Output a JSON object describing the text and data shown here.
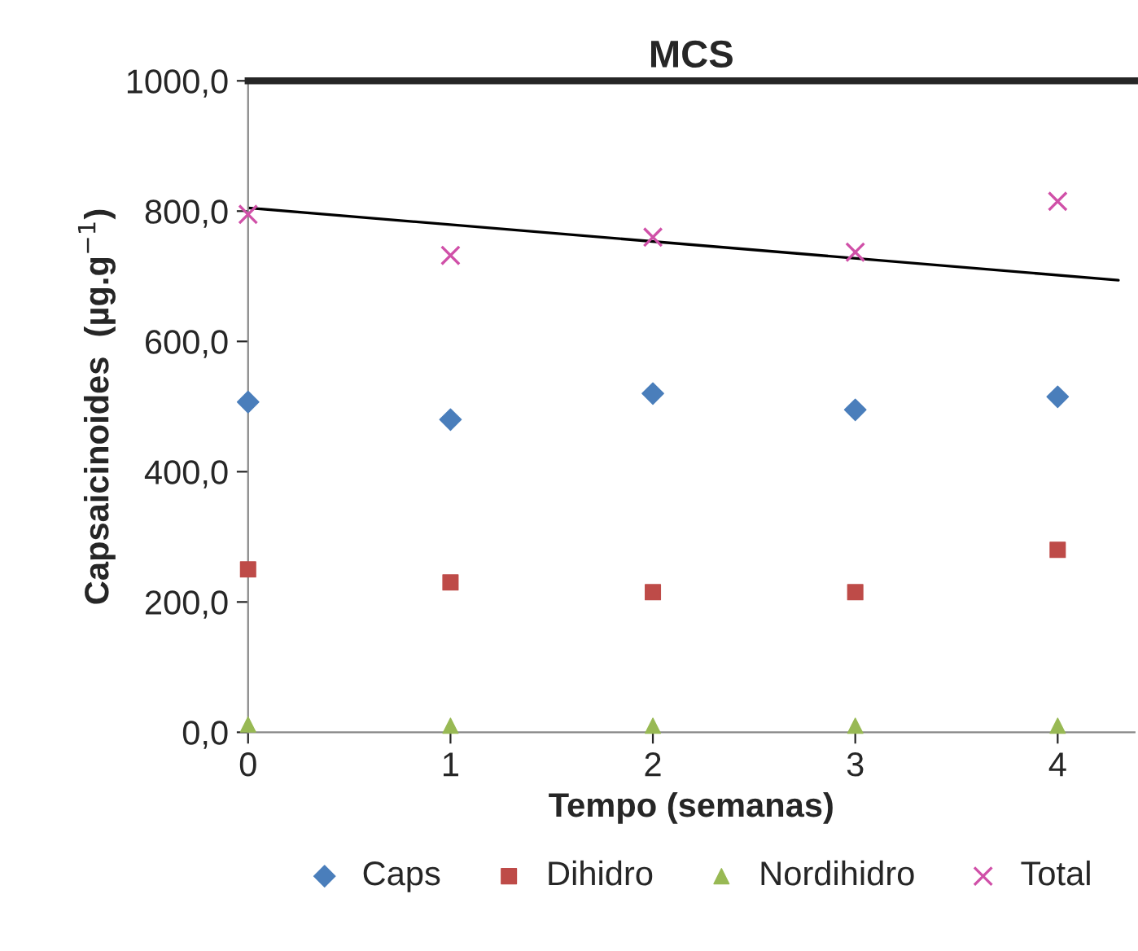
{
  "chart_data": {
    "type": "scatter",
    "title": "MCS",
    "xlabel": "Tempo (semanas)",
    "ylabel": "Capsaicinoides  (µg.g$^{−1}$)",
    "x": [
      0,
      1,
      2,
      3,
      4
    ],
    "series": [
      {
        "name": "Caps",
        "color": "#4a7ebb",
        "marker": "diamond",
        "values": [
          507,
          480,
          520,
          495,
          515
        ]
      },
      {
        "name": "Dihidro",
        "color": "#be4b48",
        "marker": "square",
        "values": [
          250,
          230,
          215,
          215,
          280
        ]
      },
      {
        "name": "Nordihidro",
        "color": "#98b954",
        "marker": "triangle",
        "values": [
          12,
          10,
          10,
          10,
          10
        ]
      },
      {
        "name": "Total",
        "color": "#d050a8",
        "marker": "cross",
        "values": [
          795,
          732,
          760,
          737,
          815
        ]
      },
      {
        "type": "line",
        "color": "#000000",
        "marker": "none",
        "line_style": "solid",
        "x": [
          0,
          4.3
        ],
        "values": [
          805,
          694
        ]
      }
    ],
    "xlim": [
      0,
      4.38
    ],
    "xticks": [
      0,
      1,
      2,
      3,
      4
    ],
    "ylim": [
      0,
      1000
    ],
    "yticks": [
      {
        "value": 0,
        "label": "0,0"
      },
      {
        "value": 200,
        "label": "200,0"
      },
      {
        "value": 400,
        "label": "400,0"
      },
      {
        "value": 600,
        "label": "600,0"
      },
      {
        "value": 800,
        "label": "800,0"
      },
      {
        "value": 1000,
        "label": "1000,0"
      }
    ],
    "grid": false,
    "legend": "bottom"
  }
}
